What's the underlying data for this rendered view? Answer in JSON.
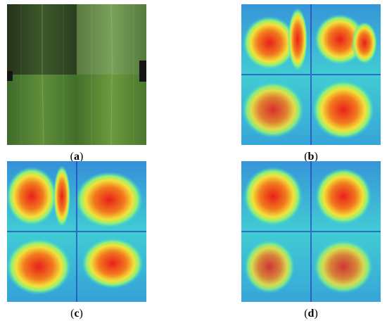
{
  "figure": {
    "panels": [
      {
        "id": "a",
        "label": "a",
        "kind": "leaf-photos"
      },
      {
        "id": "b",
        "label": "b",
        "kind": "heatmap"
      },
      {
        "id": "c",
        "label": "c",
        "kind": "heatmap"
      },
      {
        "id": "d",
        "label": "d",
        "kind": "heatmap"
      }
    ]
  },
  "colors": {
    "leaf_dark": "#2f4a22",
    "leaf_mid": "#4d7a34",
    "leaf_light": "#6f9a45",
    "heat_low": "#1f3fd0",
    "heat_mid": "#3fd7d0",
    "heat_high": "#f23a1a"
  }
}
